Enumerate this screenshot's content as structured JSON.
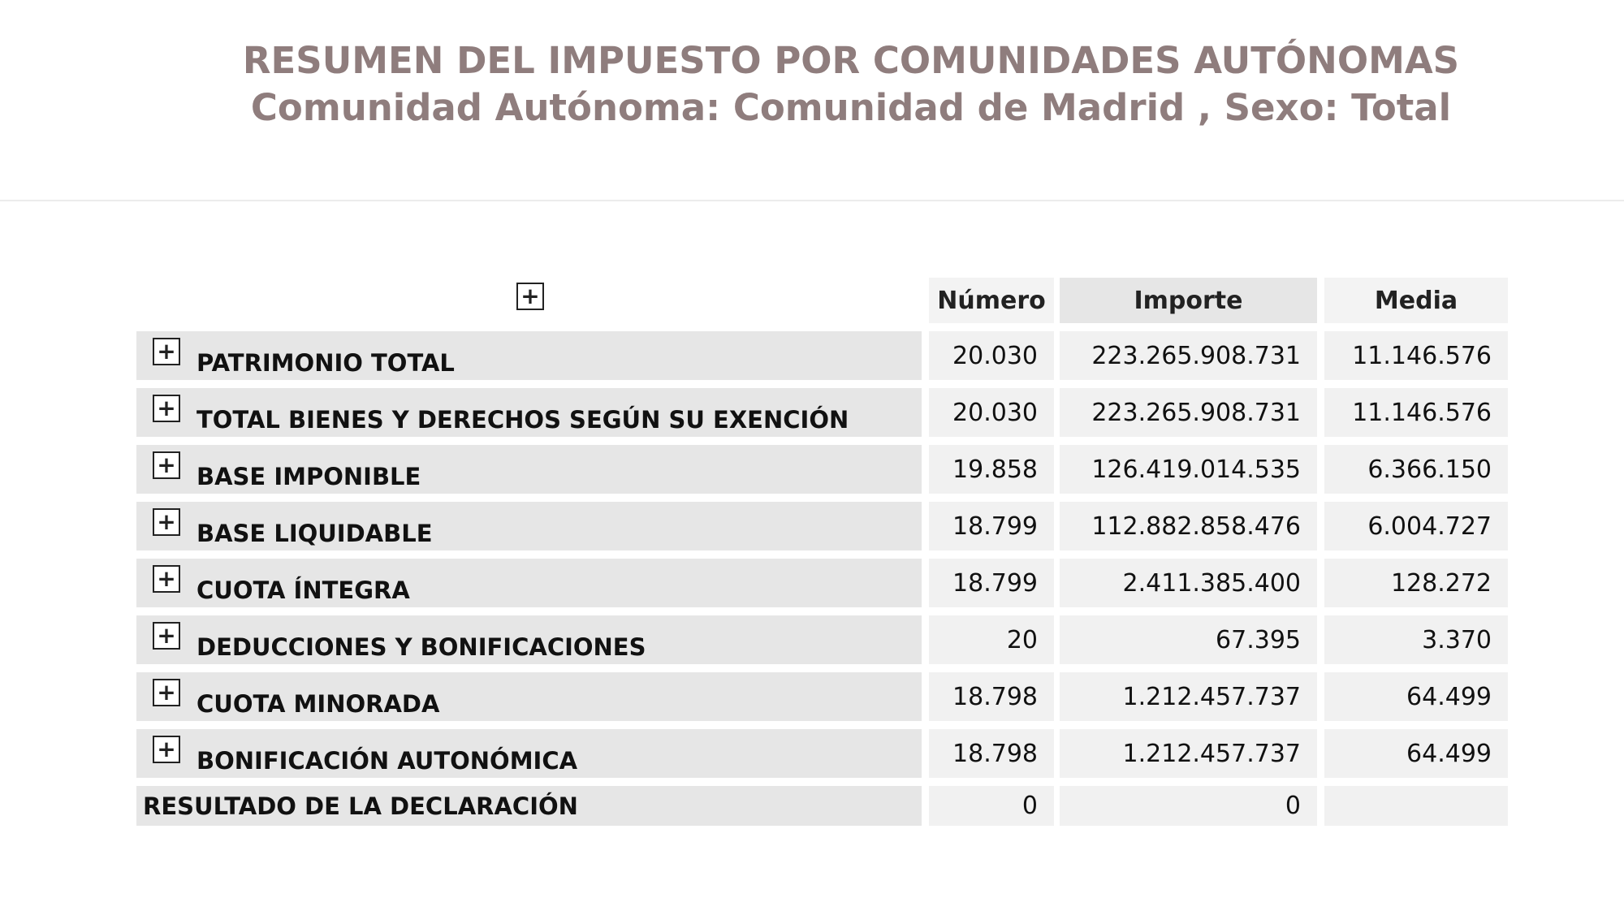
{
  "header": {
    "title": "RESUMEN DEL IMPUESTO POR COMUNIDADES AUTÓNOMAS",
    "subtitle": "Comunidad Autónoma: Comunidad de Madrid , Sexo: Total"
  },
  "table": {
    "expand_all_icon": "plus-box-icon",
    "columns": [
      "Número",
      "Importe",
      "Media"
    ],
    "rows": [
      {
        "label": "PATRIMONIO TOTAL",
        "expandable": true,
        "numero": "20.030",
        "importe": "223.265.908.731",
        "media": "11.146.576"
      },
      {
        "label": "TOTAL BIENES Y DERECHOS SEGÚN SU EXENCIÓN",
        "expandable": true,
        "numero": "20.030",
        "importe": "223.265.908.731",
        "media": "11.146.576"
      },
      {
        "label": "BASE IMPONIBLE",
        "expandable": true,
        "numero": "19.858",
        "importe": "126.419.014.535",
        "media": "6.366.150"
      },
      {
        "label": "BASE LIQUIDABLE",
        "expandable": true,
        "numero": "18.799",
        "importe": "112.882.858.476",
        "media": "6.004.727"
      },
      {
        "label": "CUOTA ÍNTEGRA",
        "expandable": true,
        "numero": "18.799",
        "importe": "2.411.385.400",
        "media": "128.272"
      },
      {
        "label": "DEDUCCIONES Y BONIFICACIONES",
        "expandable": true,
        "numero": "20",
        "importe": "67.395",
        "media": "3.370"
      },
      {
        "label": "CUOTA MINORADA",
        "expandable": true,
        "numero": "18.798",
        "importe": "1.212.457.737",
        "media": "64.499"
      },
      {
        "label": "BONIFICACIÓN AUTONÓMICA",
        "expandable": true,
        "numero": "18.798",
        "importe": "1.212.457.737",
        "media": "64.499"
      },
      {
        "label": "RESULTADO DE LA DECLARACIÓN",
        "expandable": false,
        "numero": "0",
        "importe": "0",
        "media": ""
      }
    ]
  },
  "colors": {
    "title": "#8f7d7d",
    "label_bg": "#e6e6e6",
    "cell_bg": "#f1f1f1"
  }
}
